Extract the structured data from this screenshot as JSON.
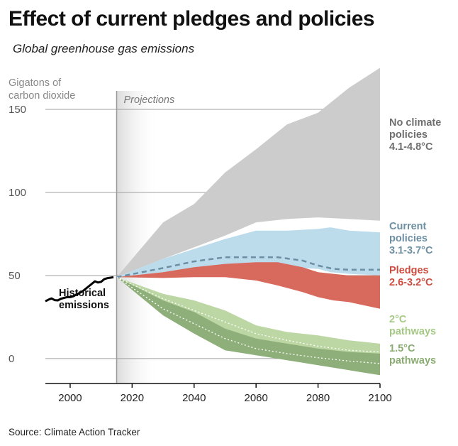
{
  "title": "Effect of current pledges and policies",
  "subtitle": "Global greenhouse gas emissions",
  "source": "Source: Climate Action Tracker",
  "chart_data": {
    "type": "area",
    "title": "Effect of current pledges and policies",
    "subtitle": "Global greenhouse gas emissions",
    "ylabel": "Gigatons of carbon dioxide",
    "xlabel": "",
    "xlim": [
      1992,
      2100
    ],
    "ylim": [
      -15,
      150
    ],
    "x_ticks": [
      2000,
      2020,
      2040,
      2060,
      2080,
      2100
    ],
    "x_tick_labels": [
      "2000",
      "2020",
      "2040",
      "2060",
      "2080",
      "2100"
    ],
    "y_ticks": [
      0,
      50,
      100,
      150
    ],
    "y_tick_labels": [
      "0",
      "50",
      "100",
      "150"
    ],
    "grid": true,
    "projection_start": 2015,
    "projection_label": "Projections",
    "series": [
      {
        "name": "Historical emissions",
        "kind": "line",
        "color": "#000000",
        "labels": [
          "Historical",
          "emissions"
        ],
        "x": [
          1992,
          1993,
          1994,
          1995,
          1996,
          1997,
          1998,
          1999,
          2000,
          2001,
          2002,
          2003,
          2004,
          2005,
          2006,
          2007,
          2008,
          2009,
          2010,
          2011,
          2012,
          2013,
          2014
        ],
        "y": [
          34.5,
          35.5,
          36.2,
          35.2,
          35,
          36,
          36.5,
          37,
          37,
          37.5,
          38.5,
          39.5,
          40.5,
          42,
          43.5,
          45,
          46.5,
          45.8,
          46.2,
          47.8,
          48.4,
          48.7,
          49
        ]
      },
      {
        "name": "No climate policies",
        "kind": "band",
        "color": "#cccccc",
        "labels": [
          "No climate",
          "policies",
          "4.1-4.8°C"
        ],
        "label_color": "#6e6e6e",
        "x": [
          2015,
          2030,
          2040,
          2050,
          2060,
          2070,
          2080,
          2090,
          2100
        ],
        "upper": [
          49,
          82,
          93,
          112,
          126,
          141,
          148,
          163,
          175
        ],
        "lower": [
          49,
          60,
          67,
          74,
          82,
          84,
          85,
          84,
          83
        ]
      },
      {
        "name": "Current policies",
        "kind": "band",
        "color": "#bcdcec",
        "labels": [
          "Current",
          "policies",
          "3.1-3.7°C"
        ],
        "label_color": "#6d8fa3",
        "x": [
          2015,
          2030,
          2040,
          2050,
          2060,
          2070,
          2080,
          2084,
          2090,
          2100
        ],
        "upper": [
          49,
          60,
          66,
          72,
          77,
          77,
          78,
          79,
          77,
          76
        ],
        "lower": [
          49,
          52,
          54,
          55,
          55,
          55,
          54,
          52,
          51,
          50
        ]
      },
      {
        "name": "Current policies (median)",
        "kind": "dashed",
        "color": "#6d8fa3",
        "x": [
          2015,
          2030,
          2040,
          2050,
          2060,
          2067,
          2075,
          2080,
          2085,
          2090,
          2100
        ],
        "y": [
          49,
          54.5,
          58.5,
          61,
          61,
          61,
          59,
          56,
          54,
          53.5,
          53.5
        ]
      },
      {
        "name": "Pledges",
        "kind": "band",
        "color": "#d8695d",
        "labels": [
          "Pledges",
          "2.6-3.2°C"
        ],
        "label_color": "#cd4c40",
        "x": [
          2015,
          2030,
          2040,
          2050,
          2060,
          2067,
          2075,
          2080,
          2085,
          2090,
          2100
        ],
        "upper": [
          49,
          52,
          55,
          57,
          58,
          58,
          55,
          52,
          51,
          50,
          50
        ],
        "lower": [
          49,
          48.5,
          49,
          49,
          47,
          44,
          40,
          37,
          35,
          34,
          30
        ]
      },
      {
        "name": "2°C pathways",
        "kind": "band",
        "color": "#bcd7a4",
        "labels": [
          "2°C",
          "pathways"
        ],
        "label_color": "#a5c985",
        "x": [
          2015,
          2030,
          2040,
          2050,
          2060,
          2070,
          2080,
          2090,
          2100
        ],
        "upper": [
          49,
          39,
          35,
          29,
          20,
          16,
          14,
          11,
          9
        ],
        "lower": [
          49,
          30,
          21,
          12,
          8,
          6,
          3,
          2,
          1
        ]
      },
      {
        "name": "1.5°C pathways",
        "kind": "band",
        "color": "#8eaf7a",
        "labels": [
          "1.5°C",
          "pathways"
        ],
        "label_color": "#8aac73",
        "x": [
          2015,
          2030,
          2040,
          2050,
          2060,
          2070,
          2080,
          2090,
          2100
        ],
        "upper": [
          49,
          35,
          28,
          18,
          12,
          9,
          6,
          4,
          3
        ],
        "lower": [
          49,
          26,
          15,
          5,
          2,
          -1,
          -4,
          -7,
          -10
        ]
      },
      {
        "name": "2°C median",
        "kind": "dotted",
        "color": "#ffffff",
        "x": [
          2015,
          2030,
          2040,
          2050,
          2060,
          2070,
          2080,
          2090,
          2100
        ],
        "y": [
          49,
          36,
          29,
          22,
          15,
          11,
          7.5,
          5,
          4
        ]
      },
      {
        "name": "1.5°C median",
        "kind": "dotted",
        "color": "#ffffff",
        "x": [
          2015,
          2030,
          2040,
          2050,
          2060,
          2070,
          2080,
          2090,
          2100
        ],
        "y": [
          49,
          30,
          21,
          12,
          6,
          3,
          0.5,
          -1.5,
          -3
        ]
      }
    ]
  },
  "colors": {
    "grid": "#a0a0a0",
    "projection_line": "#999999",
    "axis": "#111111"
  }
}
